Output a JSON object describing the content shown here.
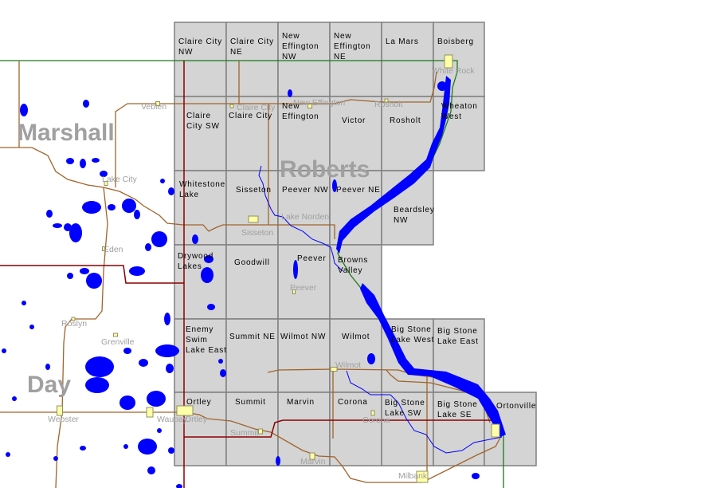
{
  "counties": [
    "Marshall",
    "Roberts",
    "Day"
  ],
  "quadrangles": [
    [
      "Claire City NW",
      "Claire City NE",
      "New Effington NW",
      "New Effington NE",
      "La Mars",
      "Boisberg"
    ],
    [
      "Claire City SW",
      "Claire City",
      "New Effington",
      "Victor",
      "Rosholt",
      "Wheaton West"
    ],
    [
      "Whitestone Lake",
      "Sisseton",
      "Peever NW",
      "Peever NE",
      "Beardsley NW"
    ],
    [
      "Drywood Lakes",
      "Goodwill",
      "Peever",
      "Browns Valley"
    ],
    [
      "Enemy Swim Lake East",
      "Summit NE",
      "Wilmot NW",
      "Wilmot",
      "Big Stone Lake West",
      "Big Stone Lake East"
    ],
    [
      "Ortley",
      "Summit",
      "Marvin",
      "Corona",
      "Big Stone Lake SW",
      "Big Stone Lake SE",
      "Ortonville"
    ]
  ],
  "towns": [
    "Veblen",
    "Claire City",
    "New Effington",
    "Rosholt",
    "White Rock",
    "Lake City",
    "Lake Norden",
    "Sisseton",
    "Eden",
    "Peever",
    "Roslyn",
    "Grenville",
    "Wilmot",
    "Webster",
    "Waubay",
    "Ortley",
    "Summit",
    "Marvin",
    "Corona",
    "Milbank"
  ],
  "colors": {
    "quad_fill": "#d4d4d4",
    "water": "#0000ff",
    "road": "#a0632a",
    "highway": "#8b0000",
    "state_line": "#1a7a1a",
    "city": "#ffffa8",
    "label_gray": "#a0a0a0"
  }
}
